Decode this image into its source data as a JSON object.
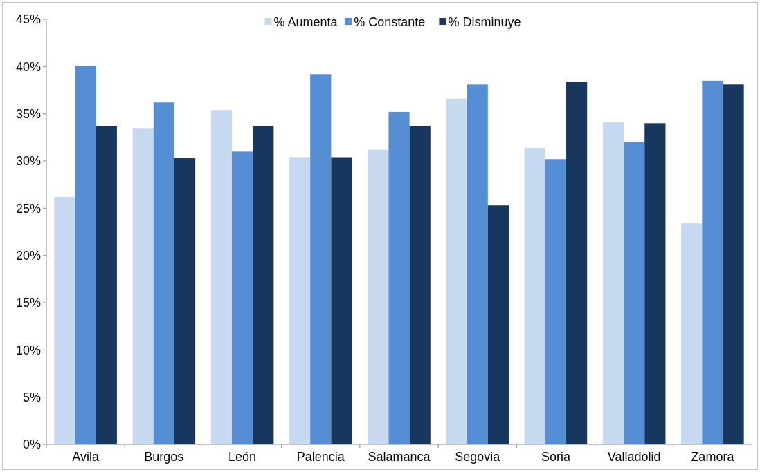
{
  "chart_data": {
    "type": "bar",
    "categories": [
      "Avila",
      "Burgos",
      "León",
      "Palencia",
      "Salamanca",
      "Segovia",
      "Soria",
      "Valladolid",
      "Zamora"
    ],
    "series": [
      {
        "name": "% Aumenta",
        "color": "#c6d9f1",
        "values": [
          26.2,
          33.5,
          35.4,
          30.4,
          31.2,
          36.6,
          31.4,
          34.1,
          23.4
        ]
      },
      {
        "name": "% Constante",
        "color": "#558ed5",
        "values": [
          40.1,
          36.2,
          31.0,
          39.2,
          35.2,
          38.1,
          30.2,
          32.0,
          38.5
        ]
      },
      {
        "name": "% Disminuye",
        "color": "#17375e",
        "values": [
          33.7,
          30.3,
          33.7,
          30.4,
          33.7,
          25.3,
          38.4,
          34.0,
          38.1
        ]
      }
    ],
    "ylim": [
      0,
      45
    ],
    "yticks": [
      {
        "value": 0,
        "label": "0%"
      },
      {
        "value": 5,
        "label": "5%"
      },
      {
        "value": 10,
        "label": "10%"
      },
      {
        "value": 15,
        "label": "15%"
      },
      {
        "value": 20,
        "label": "20%"
      },
      {
        "value": 25,
        "label": "25%"
      },
      {
        "value": 30,
        "label": "30%"
      },
      {
        "value": 35,
        "label": "35%"
      },
      {
        "value": 40,
        "label": "40%"
      },
      {
        "value": 45,
        "label": "45%"
      }
    ],
    "grid": false,
    "legend": "top"
  }
}
